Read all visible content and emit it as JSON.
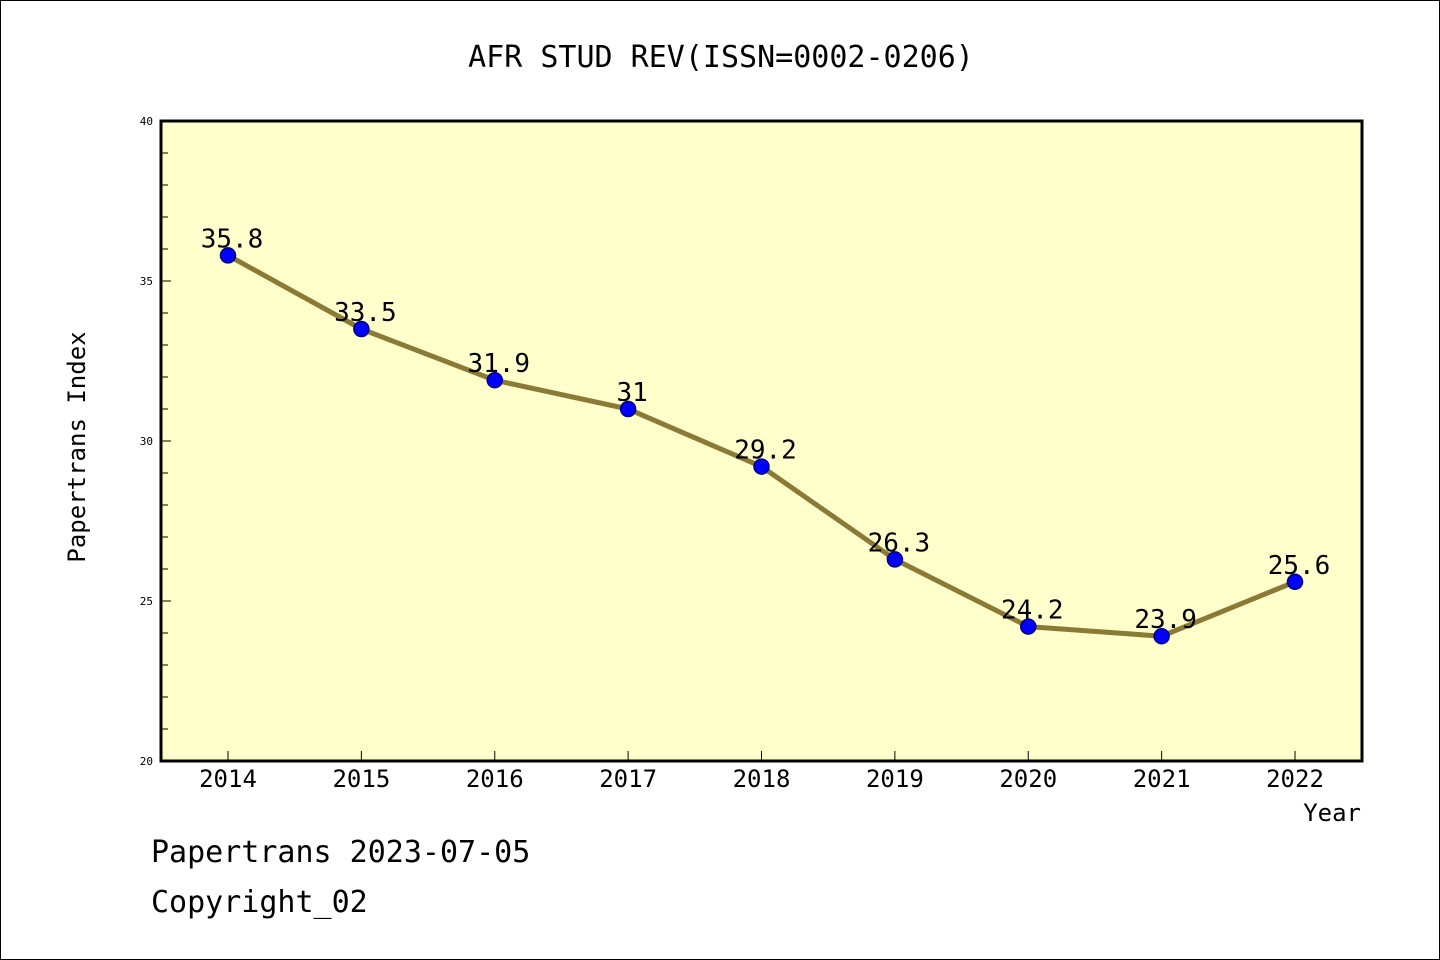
{
  "chart_data": {
    "type": "line",
    "title": "AFR STUD REV(ISSN=0002-0206)",
    "xlabel": "Year",
    "ylabel": "Papertrans Index",
    "categories": [
      "2014",
      "2015",
      "2016",
      "2017",
      "2018",
      "2019",
      "2020",
      "2021",
      "2022"
    ],
    "series": [
      {
        "values": [
          35.8,
          33.5,
          31.9,
          31,
          29.2,
          26.3,
          24.2,
          23.9,
          25.6
        ],
        "data_labels": [
          "35.8",
          "33.5",
          "31.9",
          "31",
          "29.2",
          "26.3",
          "24.2",
          "23.9",
          "25.6"
        ]
      }
    ],
    "ylim": [
      20,
      40
    ],
    "yticks": [
      "20",
      "25",
      "30",
      "35",
      "40"
    ],
    "grid": false,
    "colors": {
      "plot_background": "#ffffcc",
      "line": "#8b7a35",
      "marker_fill": "#0000ff",
      "marker_stroke": "#000080"
    }
  },
  "footer": {
    "line1": "Papertrans 2023-07-05",
    "line2": "Copyright_02"
  }
}
